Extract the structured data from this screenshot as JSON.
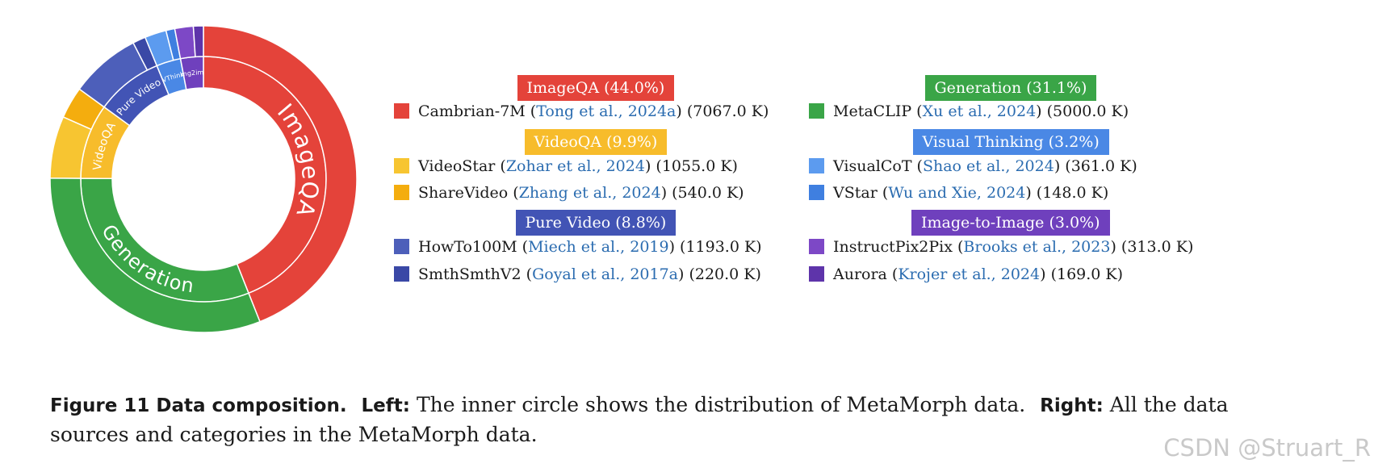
{
  "chart_data": {
    "type": "pie",
    "inner_ring": [
      {
        "label": "ImageQA",
        "value": 44.0,
        "color": "#e4433a"
      },
      {
        "label": "Generation",
        "value": 31.1,
        "color": "#3aa547"
      },
      {
        "label": "VideoQA",
        "value": 9.9,
        "color": "#f7bc2b"
      },
      {
        "label": "Pure Video",
        "value": 8.8,
        "color": "#4254b5"
      },
      {
        "label": "VThink",
        "value": 3.2,
        "color": "#4a88e5"
      },
      {
        "label": "img2img",
        "value": 3.0,
        "color": "#6f40bd"
      }
    ],
    "outer_ring": [
      {
        "name": "Cambrian-7M",
        "value": 7067.0,
        "color": "#e4433a"
      },
      {
        "name": "MetaCLIP",
        "value": 5000.0,
        "color": "#3aa547"
      },
      {
        "name": "VideoStar",
        "value": 1055.0,
        "color": "#f7c531"
      },
      {
        "name": "ShareVideo",
        "value": 540.0,
        "color": "#f4ad0e"
      },
      {
        "name": "HowTo100M",
        "value": 1193.0,
        "color": "#4d5fba"
      },
      {
        "name": "SmthSmthV2",
        "value": 220.0,
        "color": "#3a48a6"
      },
      {
        "name": "VisualCoT",
        "value": 361.0,
        "color": "#5c9bef"
      },
      {
        "name": "VStar",
        "value": 148.0,
        "color": "#3f7fe0"
      },
      {
        "name": "InstructPix2Pix",
        "value": 313.0,
        "color": "#7d48c6"
      },
      {
        "name": "Aurora",
        "value": 169.0,
        "color": "#5e34aa"
      }
    ],
    "categories": [
      {
        "title": "ImageQA (44.0%)",
        "color": "#e4433a",
        "items": [
          {
            "name": "Cambrian-7M",
            "cite": "Tong et al., 2024a",
            "size": "(7067.0 K)",
            "color": "#e4433a"
          }
        ]
      },
      {
        "title": "VideoQA (9.9%)",
        "color": "#f7bc2b",
        "items": [
          {
            "name": "VideoStar",
            "cite": "Zohar et al., 2024",
            "size": "(1055.0 K)",
            "color": "#f7c531"
          },
          {
            "name": "ShareVideo",
            "cite": "Zhang et al., 2024",
            "size": "(540.0 K)",
            "color": "#f4ad0e"
          }
        ]
      },
      {
        "title": "Pure Video (8.8%)",
        "color": "#4254b5",
        "items": [
          {
            "name": "HowTo100M",
            "cite": "Miech et al., 2019",
            "size": "(1193.0 K)",
            "color": "#4d5fba"
          },
          {
            "name": "SmthSmthV2",
            "cite": "Goyal et al., 2017a",
            "size": "(220.0 K)",
            "color": "#3a48a6"
          }
        ]
      },
      {
        "title": "Generation (31.1%)",
        "color": "#3aa547",
        "items": [
          {
            "name": "MetaCLIP",
            "cite": "Xu et al., 2024",
            "size": "(5000.0 K)",
            "color": "#3aa547"
          }
        ]
      },
      {
        "title": "Visual Thinking (3.2%)",
        "color": "#4a88e5",
        "items": [
          {
            "name": "VisualCoT",
            "cite": "Shao et al., 2024",
            "size": "(361.0 K)",
            "color": "#5c9bef"
          },
          {
            "name": "VStar",
            "cite": "Wu and Xie, 2024",
            "size": "(148.0 K)",
            "color": "#3f7fe0"
          }
        ]
      },
      {
        "title": "Image-to-Image (3.0%)",
        "color": "#6f40bd",
        "items": [
          {
            "name": "InstructPix2Pix",
            "cite": "Brooks et al., 2023",
            "size": "(313.0 K)",
            "color": "#7d48c6"
          },
          {
            "name": "Aurora",
            "cite": "Krojer et al., 2024",
            "size": "(169.0 K)",
            "color": "#5e34aa"
          }
        ]
      }
    ]
  },
  "caption": {
    "label": "Figure 11  Data composition.",
    "left_label": "Left:",
    "left_text": "The inner circle shows the distribution of MetaMorph data.",
    "right_label": "Right:",
    "right_text": "All the data sources and categories in the MetaMorph data."
  },
  "watermark": "CSDN @Struart_R"
}
